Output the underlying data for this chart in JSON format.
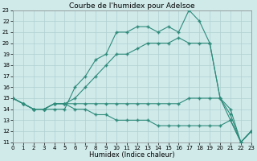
{
  "title": "Courbe de l'humidex pour Adelsoe",
  "xlabel": "Humidex (Indice chaleur)",
  "x": [
    0,
    1,
    2,
    3,
    4,
    5,
    6,
    7,
    8,
    9,
    10,
    11,
    12,
    13,
    14,
    15,
    16,
    17,
    18,
    19,
    20,
    21,
    22,
    23
  ],
  "y_max": [
    15,
    14.5,
    14,
    14,
    14,
    14,
    16,
    17,
    18.5,
    19,
    21,
    21,
    21.5,
    21.5,
    21,
    21.5,
    21,
    23,
    22,
    20,
    15,
    13,
    11,
    12
  ],
  "y_mean": [
    15,
    14.5,
    14,
    14,
    14.5,
    14.5,
    15,
    16,
    17,
    18,
    19,
    19,
    19.5,
    20,
    20,
    20,
    20.5,
    20,
    20,
    20,
    15,
    14,
    11,
    12
  ],
  "y_min1": [
    15,
    14.5,
    14,
    14,
    14.5,
    14.5,
    14.5,
    14.5,
    14.5,
    14.5,
    14.5,
    14.5,
    14.5,
    14.5,
    14.5,
    14.5,
    14.5,
    15,
    15,
    15,
    15,
    13.5,
    11,
    12
  ],
  "y_min2": [
    15,
    14.5,
    14,
    14,
    14.5,
    14.5,
    14,
    14,
    13.5,
    13.5,
    13,
    13,
    13,
    13,
    12.5,
    12.5,
    12.5,
    12.5,
    12.5,
    12.5,
    12.5,
    13,
    11,
    12
  ],
  "line_color": "#2e8b7a",
  "bg_color": "#d0eaea",
  "grid_color": "#b0d0d0",
  "xlim": [
    0,
    23
  ],
  "ylim": [
    11,
    23
  ],
  "yticks": [
    11,
    12,
    13,
    14,
    15,
    16,
    17,
    18,
    19,
    20,
    21,
    22,
    23
  ],
  "xticks": [
    0,
    1,
    2,
    3,
    4,
    5,
    6,
    7,
    8,
    9,
    10,
    11,
    12,
    13,
    14,
    15,
    16,
    17,
    18,
    19,
    20,
    21,
    22,
    23
  ],
  "title_fontsize": 6.5,
  "label_fontsize": 6,
  "tick_fontsize": 5
}
